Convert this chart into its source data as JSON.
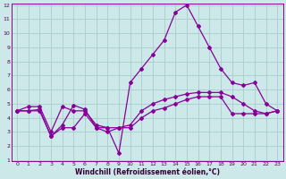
{
  "xlabel": "Windchill (Refroidissement éolien,°C)",
  "bg_color": "#cce8e8",
  "grid_color": "#aacccc",
  "line_color": "#880099",
  "x": [
    0,
    1,
    2,
    3,
    4,
    5,
    6,
    7,
    8,
    9,
    10,
    11,
    12,
    13,
    14,
    15,
    16,
    17,
    18,
    19,
    20,
    21,
    22,
    23
  ],
  "y_line1": [
    4.5,
    4.8,
    4.8,
    3.0,
    4.8,
    4.5,
    4.5,
    3.5,
    3.3,
    1.5,
    6.5,
    7.5,
    8.5,
    9.5,
    11.5,
    12.0,
    10.5,
    9.0,
    7.5,
    6.5,
    6.3,
    6.5,
    5.0,
    4.5
  ],
  "y_line2": [
    4.5,
    4.5,
    4.6,
    2.7,
    3.5,
    4.9,
    4.6,
    3.3,
    3.0,
    3.3,
    3.5,
    4.5,
    5.0,
    5.3,
    5.5,
    5.7,
    5.8,
    5.8,
    5.8,
    5.5,
    5.0,
    4.5,
    4.3,
    4.5
  ],
  "y_line3": [
    4.5,
    4.5,
    4.5,
    2.7,
    3.3,
    3.3,
    4.3,
    3.3,
    3.3,
    3.3,
    3.3,
    4.0,
    4.5,
    4.7,
    5.0,
    5.3,
    5.5,
    5.5,
    5.5,
    4.3,
    4.3,
    4.3,
    4.3,
    4.5
  ],
  "ylim_min": 1,
  "ylim_max": 12,
  "xlim_min": -0.5,
  "xlim_max": 23.5,
  "yticks": [
    1,
    2,
    3,
    4,
    5,
    6,
    7,
    8,
    9,
    10,
    11,
    12
  ],
  "xticks": [
    0,
    1,
    2,
    3,
    4,
    5,
    6,
    7,
    8,
    9,
    10,
    11,
    12,
    13,
    14,
    15,
    16,
    17,
    18,
    19,
    20,
    21,
    22,
    23
  ],
  "marker": "D",
  "markersize": 2.0,
  "linewidth": 0.9,
  "tick_fontsize": 4.5,
  "xlabel_fontsize": 5.5,
  "tick_color": "#550055",
  "xlabel_color": "#330033"
}
